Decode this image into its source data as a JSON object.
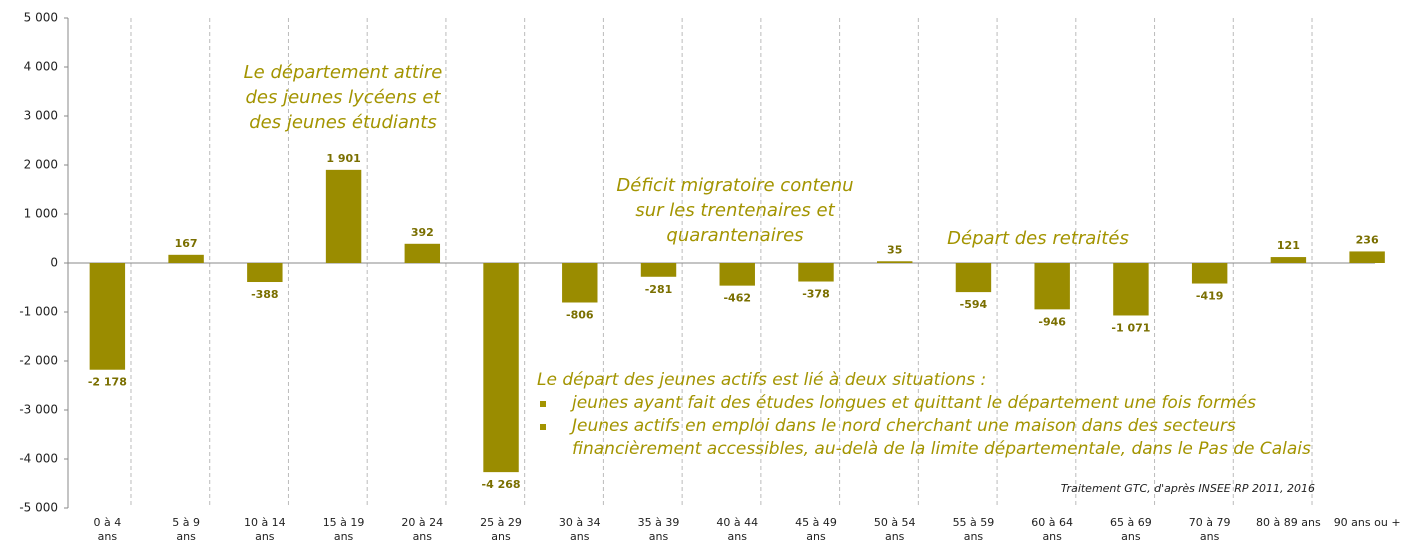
{
  "chart_data": {
    "type": "bar",
    "categories": [
      "0 à 4 ans",
      "5 à 9 ans",
      "10 à 14 ans",
      "15 à 19 ans",
      "20 à 24 ans",
      "25 à 29 ans",
      "30 à 34 ans",
      "35 à 39 ans",
      "40 à 44 ans",
      "45 à 49 ans",
      "50 à 54 ans",
      "55 à 59 ans",
      "60 à 64 ans",
      "65 à 69 ans",
      "70 à 79 ans",
      "80 à 89 ans",
      "90 ans ou +"
    ],
    "values": [
      -2178,
      167,
      -388,
      1901,
      392,
      -4268,
      -806,
      -281,
      -462,
      -378,
      35,
      -594,
      -946,
      -1071,
      -419,
      121,
      236
    ],
    "value_labels": [
      "-2 178",
      "167",
      "-388",
      "1 901",
      "392",
      "-4 268",
      "-806",
      "-281",
      "-462",
      "-378",
      "35",
      "-594",
      "-946",
      "-1 071",
      "-419",
      "121",
      "236"
    ],
    "color": "#9a8c00",
    "ylim": [
      -5000,
      5000
    ],
    "yticks": [
      {
        "value": -5000,
        "label": "-5 000"
      },
      {
        "value": -4000,
        "label": "-4 000"
      },
      {
        "value": -3000,
        "label": "-3 000"
      },
      {
        "value": -2000,
        "label": "-2 000"
      },
      {
        "value": -1000,
        "label": "-1 000"
      },
      0,
      {
        "value": 1000,
        "label": "1 000"
      },
      {
        "value": 2000,
        "label": "2 000"
      },
      {
        "value": 3000,
        "label": "3 000"
      },
      {
        "value": 4000,
        "label": "4 000"
      },
      {
        "value": 5000,
        "label": "5 000"
      }
    ],
    "annotations": [
      "Le département attire des jeunes lycéens et des jeunes étudiants",
      "Déficit migratoire contenu sur les trentenaires et quarantenaires",
      "Départ des retraités"
    ],
    "annotation_list": {
      "heading": "Le départ des jeunes actifs est lié à deux situations :",
      "items": [
        "jeunes ayant fait des études longues et quittant le département une fois formés",
        "Jeunes actifs en emploi dans le nord cherchant une maison dans des secteurs financièrement accessibles, au-delà de la limite départementale, dans le Pas de Calais"
      ]
    },
    "source": "Traitement GTC, d'après INSEE RP 2011, 2016"
  }
}
